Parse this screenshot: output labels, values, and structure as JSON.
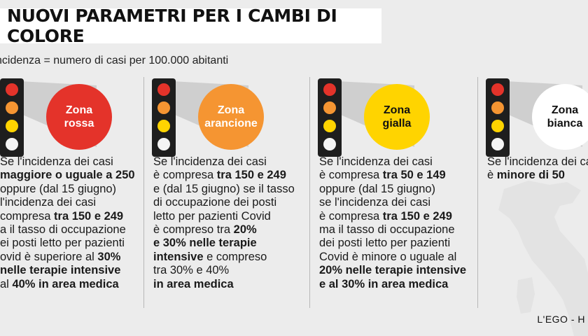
{
  "title": "NUOVI PARAMETRI PER I CAMBI DI COLORE",
  "subtitle": "ncidenza = numero di casi per 100.000 abitanti",
  "credit": "L'EGO - H",
  "colors": {
    "red": "#e4332a",
    "orange": "#f59532",
    "yellow": "#ffd400",
    "white": "#f4f4f4"
  },
  "zones": [
    {
      "name_line1": "Zona",
      "name_line2": "rossa",
      "lines": [
        [
          {
            "t": "Se l'incidenza dei casi",
            "b": false
          }
        ],
        [
          {
            "t": "maggiore o uguale a 250",
            "b": true
          }
        ],
        [
          {
            "t": "oppure (dal 15 giugno)",
            "b": false
          }
        ],
        [
          {
            "t": "l'incidenza dei casi",
            "b": false
          }
        ],
        [
          {
            "t": "compresa ",
            "b": false
          },
          {
            "t": "tra 150 e 249",
            "b": true
          }
        ],
        [
          {
            "t": "a il tasso di occupazione",
            "b": false
          }
        ],
        [
          {
            "t": "ei posti letto per pazienti",
            "b": false
          }
        ],
        [
          {
            "t": "ovid è superiore al ",
            "b": false
          },
          {
            "t": "30%",
            "b": true
          }
        ],
        [
          {
            "t": "nelle terapie intensive",
            "b": true
          }
        ],
        [
          {
            "t": "al ",
            "b": false
          },
          {
            "t": "40% in area medica",
            "b": true
          }
        ]
      ]
    },
    {
      "name_line1": "Zona",
      "name_line2": "arancione",
      "lines": [
        [
          {
            "t": "Se l'incidenza dei casi",
            "b": false
          }
        ],
        [
          {
            "t": "è compresa ",
            "b": false
          },
          {
            "t": "tra 150 e 249",
            "b": true
          }
        ],
        [
          {
            "t": "e (dal 15 giugno) se il tasso",
            "b": false
          }
        ],
        [
          {
            "t": "di occupazione dei posti",
            "b": false
          }
        ],
        [
          {
            "t": "letto per pazienti Covid",
            "b": false
          }
        ],
        [
          {
            "t": "è compreso tra ",
            "b": false
          },
          {
            "t": "20%",
            "b": true
          }
        ],
        [
          {
            "t": "e 30% nelle terapie",
            "b": true
          }
        ],
        [
          {
            "t": "intensive",
            "b": true
          },
          {
            "t": " e compreso",
            "b": false
          }
        ],
        [
          {
            "t": "tra 30% e 40%",
            "b": false
          }
        ],
        [
          {
            "t": "in area medica",
            "b": true
          }
        ]
      ]
    },
    {
      "name_line1": "Zona",
      "name_line2": "gialla",
      "lines": [
        [
          {
            "t": "Se l'incidenza dei casi",
            "b": false
          }
        ],
        [
          {
            "t": "è compresa ",
            "b": false
          },
          {
            "t": "tra 50 e 149",
            "b": true
          }
        ],
        [
          {
            "t": "oppure (dal 15 giugno)",
            "b": false
          }
        ],
        [
          {
            "t": "se l'incidenza dei casi",
            "b": false
          }
        ],
        [
          {
            "t": "è compresa ",
            "b": false
          },
          {
            "t": "tra 150 e 249",
            "b": true
          }
        ],
        [
          {
            "t": "ma il tasso di occupazione",
            "b": false
          }
        ],
        [
          {
            "t": "dei posti letto per pazienti",
            "b": false
          }
        ],
        [
          {
            "t": "Covid è minore o uguale al",
            "b": false
          }
        ],
        [
          {
            "t": "20% nelle terapie intensive",
            "b": true
          }
        ],
        [
          {
            "t": "e al 30% in area medica",
            "b": true
          }
        ]
      ]
    },
    {
      "name_line1": "Zona",
      "name_line2": "bianca",
      "lines": [
        [
          {
            "t": "Se l'incidenza dei ca",
            "b": false
          }
        ],
        [
          {
            "t": "è ",
            "b": false
          },
          {
            "t": "minore di 50",
            "b": true
          }
        ]
      ]
    }
  ]
}
